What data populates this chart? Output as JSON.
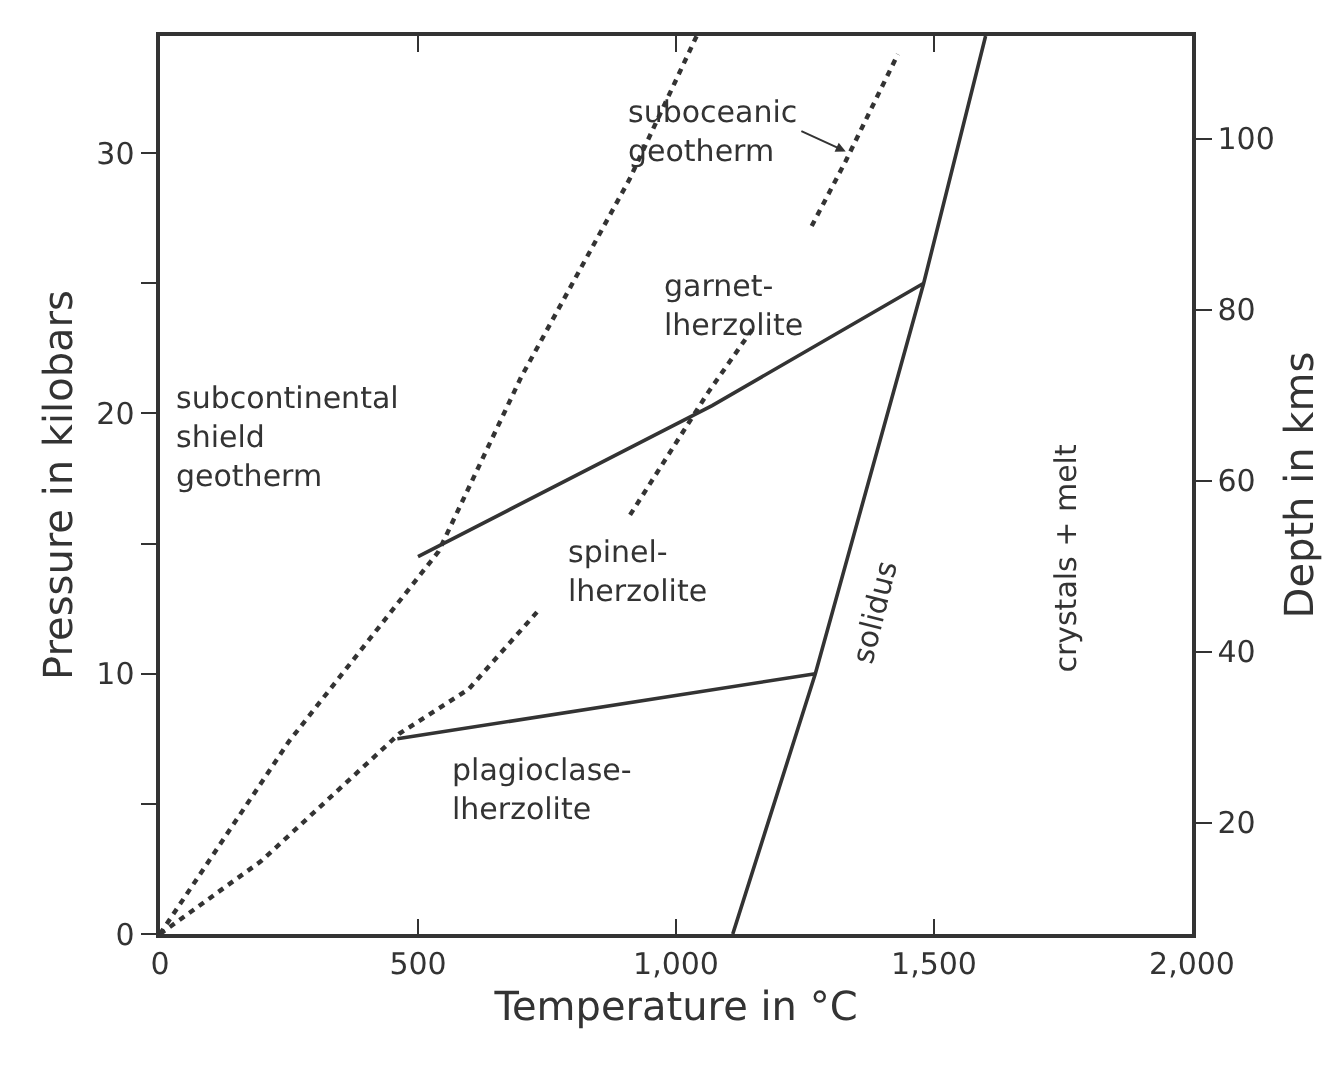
{
  "chart_data": {
    "type": "line",
    "xlabel": "Temperature in °C",
    "ylabel": "Pressure in kilobars",
    "y2label": "Depth in kms",
    "xlim": [
      0,
      2000
    ],
    "xticks": [
      0,
      500,
      {
        "value": 1000,
        "label": "1,000"
      },
      {
        "value": 1500,
        "label": "1,500"
      },
      {
        "value": 2000,
        "label": "2,000"
      }
    ],
    "ylim": [
      0,
      34.5
    ],
    "yticks": [
      0,
      {
        "value": 5,
        "label": null
      },
      10,
      {
        "value": 15,
        "label": null
      },
      20,
      {
        "value": 25,
        "label": null
      },
      30
    ],
    "y2lim": [
      7,
      112
    ],
    "y2ticks": [
      20,
      40,
      60,
      80,
      100
    ],
    "marker": "none",
    "series": [
      {
        "x": [
          1110,
          1270,
          1480,
          1600
        ],
        "values": [
          0,
          10,
          25,
          34.5
        ],
        "color": "#333333",
        "line_style": "solid"
      },
      {
        "x": [
          460,
          1270
        ],
        "values": [
          7.5,
          10
        ],
        "color": "#333333",
        "line_style": "solid"
      },
      {
        "x": [
          500,
          1070,
          1480
        ],
        "values": [
          14.5,
          20.3,
          25
        ],
        "color": "#333333",
        "line_style": "solid"
      },
      {
        "x": [
          0,
          250,
          540,
          700,
          910,
          1040
        ],
        "values": [
          0,
          7.4,
          14.7,
          21.4,
          29,
          34.5
        ],
        "color": "#333333",
        "line_style": "dotted"
      },
      {
        "x": [
          0,
          196,
          464,
          598,
          732,
          800,
          911,
          1062,
          1154,
          1200,
          1263,
          1329,
          1430
        ],
        "values": [
          0,
          2.8,
          7.7,
          9.4,
          12.4,
          null,
          16.1,
          20.8,
          23.4,
          null,
          27.2,
          29.7,
          33.8
        ],
        "color": "#333333",
        "line_style": "dotted"
      }
    ],
    "annotations": [
      {
        "text": "suboceanic\ngeotherm",
        "x": 1336,
        "y": 30
      },
      "garnet-\nlherzolite",
      "subcontinental\nshield\ngeotherm",
      "spinel-\nlherzolite",
      "plagioclase-\nlherzolite",
      "solidus",
      "crystals + melt"
    ]
  }
}
